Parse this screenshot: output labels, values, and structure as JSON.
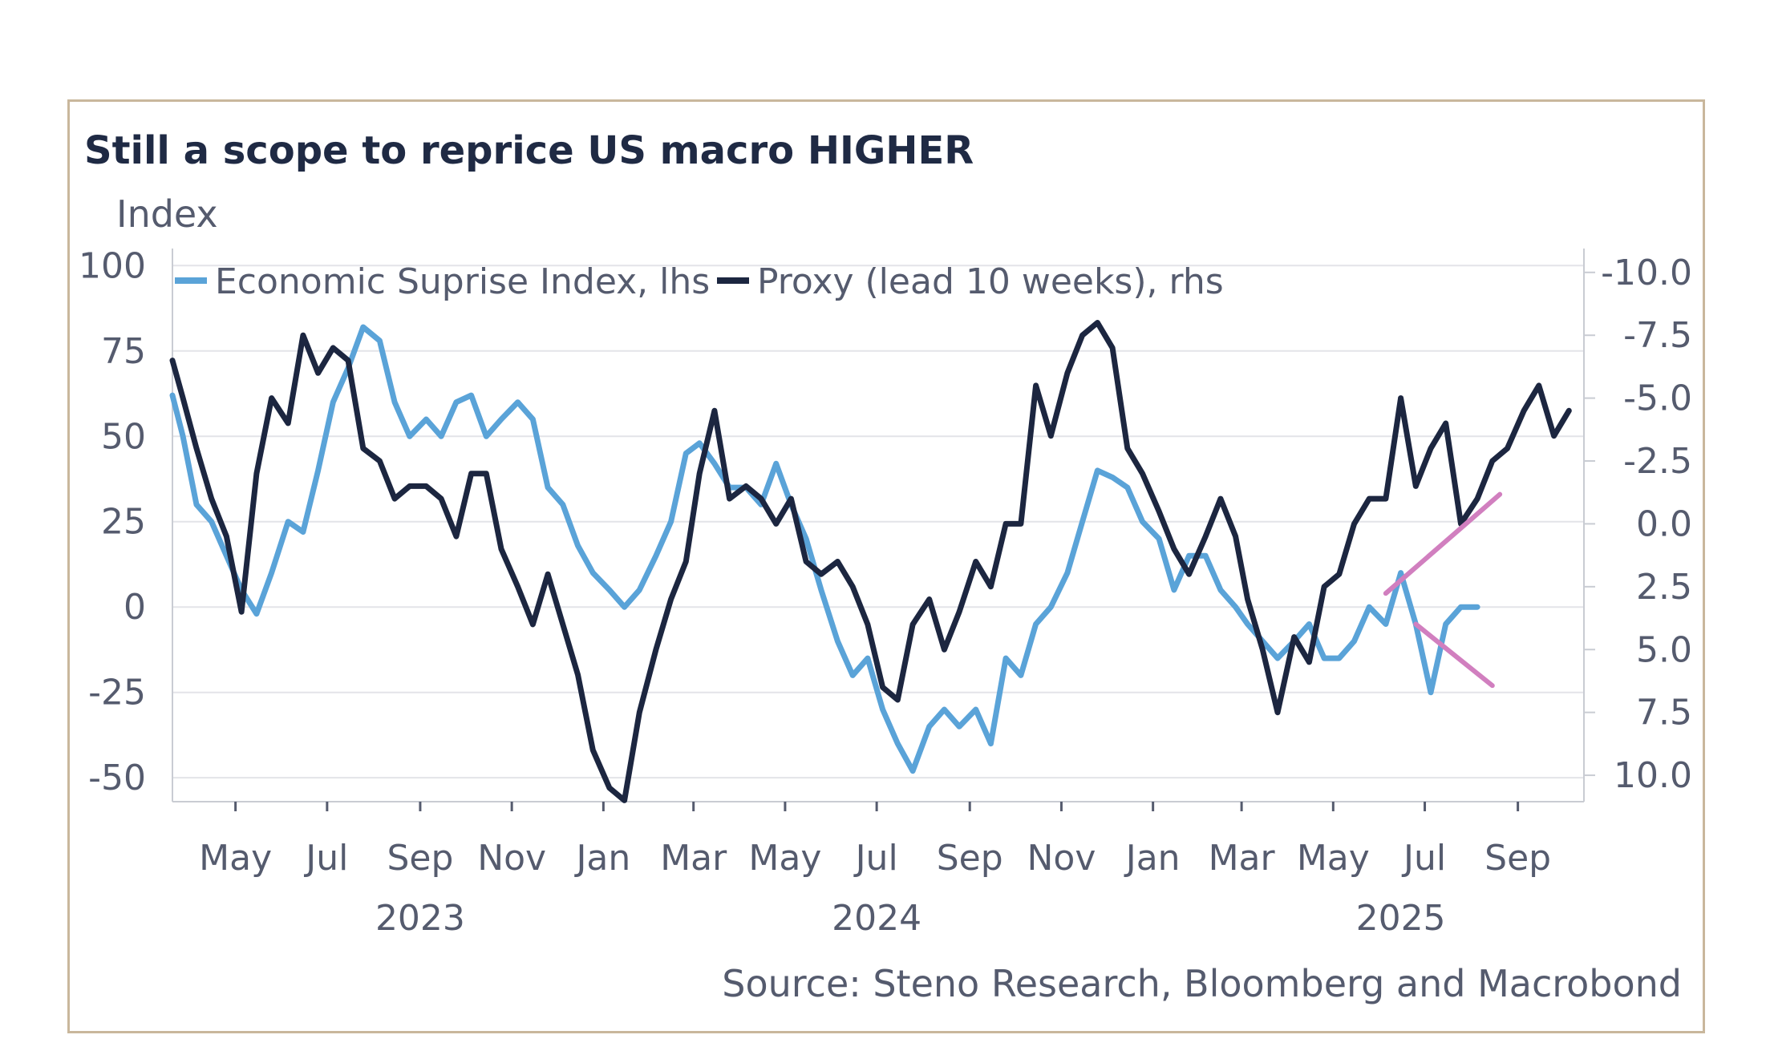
{
  "chart_data": {
    "type": "line",
    "title": "Still a scope to reprice US macro HIGHER",
    "ylabel": "Index",
    "source": "Source: Steno Research, Bloomberg and Macrobond",
    "x_range": [
      "2023-03-20",
      "2025-10-15"
    ],
    "ylim_left": [
      -57,
      105
    ],
    "ylim_right": [
      11.05,
      -10.95
    ],
    "left_ticks": [
      100,
      75,
      50,
      25,
      0,
      -25,
      -50
    ],
    "right_ticks": [
      -10.0,
      -7.5,
      -5.0,
      -2.5,
      0.0,
      2.5,
      5.0,
      7.5,
      10.0
    ],
    "right_tick_labels": [
      "-10.0",
      "-7.5",
      "-5.0",
      "-2.5",
      "0.0",
      "2.5",
      "5.0",
      "7.5",
      "10.0"
    ],
    "month_ticks": [
      "May",
      "Jul",
      "Sep",
      "Nov",
      "Jan",
      "Mar",
      "May",
      "Jul",
      "Sep",
      "Nov",
      "Jan",
      "Mar",
      "May",
      "Jul",
      "Sep"
    ],
    "month_dates": [
      "2023-05-01",
      "2023-07-01",
      "2023-09-01",
      "2023-11-01",
      "2024-01-01",
      "2024-03-01",
      "2024-05-01",
      "2024-07-01",
      "2024-09-01",
      "2024-11-01",
      "2025-01-01",
      "2025-03-01",
      "2025-05-01",
      "2025-07-01",
      "2025-09-01"
    ],
    "year_ticks": [
      "2023",
      "2024",
      "2025"
    ],
    "year_dates": [
      "2023-09-01",
      "2024-07-01",
      "2025-06-15"
    ],
    "grid": true,
    "legend_position": "top-left",
    "series": [
      {
        "name": "Economic Suprise Index, lhs",
        "axis": "left",
        "color": "#5aa3d8",
        "x": [
          "2023-03-20",
          "2023-03-27",
          "2023-04-05",
          "2023-04-15",
          "2023-04-25",
          "2023-05-05",
          "2023-05-15",
          "2023-05-25",
          "2023-06-05",
          "2023-06-15",
          "2023-06-25",
          "2023-07-05",
          "2023-07-15",
          "2023-07-25",
          "2023-08-05",
          "2023-08-15",
          "2023-08-25",
          "2023-09-05",
          "2023-09-15",
          "2023-09-25",
          "2023-10-05",
          "2023-10-15",
          "2023-10-25",
          "2023-11-05",
          "2023-11-15",
          "2023-11-25",
          "2023-12-05",
          "2023-12-15",
          "2023-12-25",
          "2024-01-05",
          "2024-01-15",
          "2024-01-25",
          "2024-02-05",
          "2024-02-15",
          "2024-02-25",
          "2024-03-05",
          "2024-03-15",
          "2024-03-25",
          "2024-04-05",
          "2024-04-15",
          "2024-04-25",
          "2024-05-05",
          "2024-05-15",
          "2024-05-25",
          "2024-06-05",
          "2024-06-15",
          "2024-06-25",
          "2024-07-05",
          "2024-07-15",
          "2024-07-25",
          "2024-08-05",
          "2024-08-15",
          "2024-08-25",
          "2024-09-05",
          "2024-09-15",
          "2024-09-25",
          "2024-10-05",
          "2024-10-15",
          "2024-10-25",
          "2024-11-05",
          "2024-11-15",
          "2024-11-25",
          "2024-12-05",
          "2024-12-15",
          "2024-12-25",
          "2025-01-05",
          "2025-01-15",
          "2025-01-25",
          "2025-02-05",
          "2025-02-15",
          "2025-02-25",
          "2025-03-05",
          "2025-03-15",
          "2025-03-25",
          "2025-04-05",
          "2025-04-15",
          "2025-04-25",
          "2025-05-05",
          "2025-05-15",
          "2025-05-25",
          "2025-06-05",
          "2025-06-15",
          "2025-06-25",
          "2025-07-05",
          "2025-07-15",
          "2025-07-25",
          "2025-08-05"
        ],
        "y": [
          62,
          50,
          30,
          25,
          15,
          5,
          -2,
          10,
          25,
          22,
          40,
          60,
          70,
          82,
          78,
          60,
          50,
          55,
          50,
          60,
          62,
          50,
          55,
          60,
          55,
          35,
          30,
          18,
          10,
          5,
          0,
          5,
          15,
          25,
          45,
          48,
          42,
          35,
          35,
          30,
          42,
          30,
          20,
          5,
          -10,
          -20,
          -15,
          -30,
          -40,
          -48,
          -35,
          -30,
          -35,
          -30,
          -40,
          -15,
          -20,
          -5,
          0,
          10,
          25,
          40,
          38,
          35,
          25,
          20,
          5,
          15,
          15,
          5,
          0,
          -5,
          -10,
          -15,
          -10,
          -5,
          -15,
          -15,
          -10,
          0,
          -5,
          10,
          -5,
          -25,
          -5,
          0,
          0
        ]
      },
      {
        "name": "Proxy (lead 10 weeks), rhs",
        "axis": "right",
        "color": "#1c2640",
        "x": [
          "2023-03-20",
          "2023-03-27",
          "2023-04-05",
          "2023-04-15",
          "2023-04-25",
          "2023-05-05",
          "2023-05-15",
          "2023-05-25",
          "2023-06-05",
          "2023-06-15",
          "2023-06-25",
          "2023-07-05",
          "2023-07-15",
          "2023-07-25",
          "2023-08-05",
          "2023-08-15",
          "2023-08-25",
          "2023-09-05",
          "2023-09-15",
          "2023-09-25",
          "2023-10-05",
          "2023-10-15",
          "2023-10-25",
          "2023-11-05",
          "2023-11-15",
          "2023-11-25",
          "2023-12-05",
          "2023-12-15",
          "2023-12-25",
          "2024-01-05",
          "2024-01-15",
          "2024-01-25",
          "2024-02-05",
          "2024-02-15",
          "2024-02-25",
          "2024-03-05",
          "2024-03-15",
          "2024-03-25",
          "2024-04-05",
          "2024-04-15",
          "2024-04-25",
          "2024-05-05",
          "2024-05-15",
          "2024-05-25",
          "2024-06-05",
          "2024-06-15",
          "2024-06-25",
          "2024-07-05",
          "2024-07-15",
          "2024-07-25",
          "2024-08-05",
          "2024-08-15",
          "2024-08-25",
          "2024-09-05",
          "2024-09-15",
          "2024-09-25",
          "2024-10-05",
          "2024-10-15",
          "2024-10-25",
          "2024-11-05",
          "2024-11-15",
          "2024-11-25",
          "2024-12-05",
          "2024-12-15",
          "2024-12-25",
          "2025-01-05",
          "2025-01-15",
          "2025-01-25",
          "2025-02-05",
          "2025-02-15",
          "2025-02-25",
          "2025-03-05",
          "2025-03-15",
          "2025-03-25",
          "2025-04-05",
          "2025-04-15",
          "2025-04-25",
          "2025-05-05",
          "2025-05-15",
          "2025-05-25",
          "2025-06-05",
          "2025-06-15",
          "2025-06-25",
          "2025-07-05",
          "2025-07-15",
          "2025-07-25",
          "2025-08-05",
          "2025-08-15",
          "2025-08-25",
          "2025-09-05",
          "2025-09-15",
          "2025-09-25",
          "2025-10-05"
        ],
        "y": [
          -6.5,
          -5.0,
          -3.0,
          -1.0,
          0.5,
          3.5,
          -2.0,
          -5.0,
          -4.0,
          -7.5,
          -6.0,
          -7.0,
          -6.5,
          -3.0,
          -2.5,
          -1.0,
          -1.5,
          -1.5,
          -1.0,
          0.5,
          -2.0,
          -2.0,
          1.0,
          2.5,
          4.0,
          2.0,
          4.0,
          6.0,
          9.0,
          10.5,
          11.0,
          7.5,
          5.0,
          3.0,
          1.5,
          -2.0,
          -4.5,
          -1.0,
          -1.5,
          -1.0,
          0.0,
          -1.0,
          1.5,
          2.0,
          1.5,
          2.5,
          4.0,
          6.5,
          7.0,
          4.0,
          3.0,
          5.0,
          3.5,
          1.5,
          2.5,
          0.0,
          0.0,
          -5.5,
          -3.5,
          -6.0,
          -7.5,
          -8.0,
          -7.0,
          -3.0,
          -2.0,
          -0.5,
          1.0,
          2.0,
          0.5,
          -1.0,
          0.5,
          3.0,
          5.0,
          7.5,
          4.5,
          5.5,
          2.5,
          2.0,
          0.0,
          -1.0,
          -1.0,
          -5.0,
          -1.5,
          -3.0,
          -4.0,
          0.0,
          -1.0,
          -2.5,
          -3.0,
          -4.5,
          -5.5,
          -3.5,
          -4.5
        ]
      }
    ],
    "annotations": [
      {
        "type": "arrow-up",
        "color": "#d17fbf",
        "x": [
          "2025-06-05",
          "2025-08-20"
        ],
        "y": [
          4,
          33
        ]
      },
      {
        "type": "arrow-down",
        "color": "#d17fbf",
        "x": [
          "2025-06-25",
          "2025-08-15"
        ],
        "y": [
          -5,
          -23
        ]
      }
    ]
  }
}
